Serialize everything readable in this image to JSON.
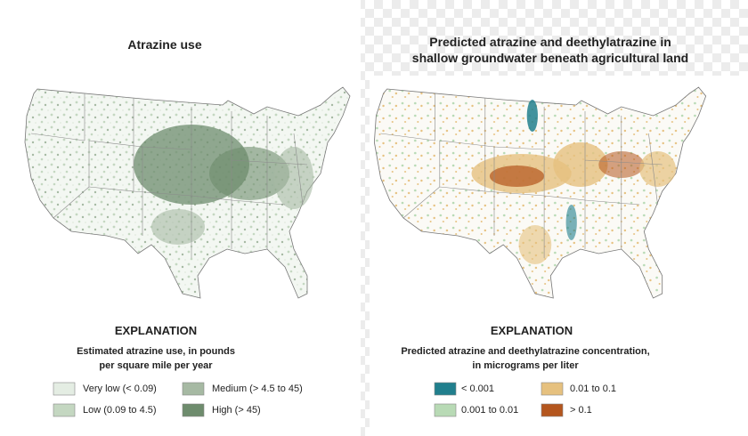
{
  "left": {
    "title": "Atrazine use",
    "explanation": "EXPLANATION",
    "subtitle": [
      "Estimated atrazine use, in pounds",
      "per square mile per year"
    ],
    "legend": [
      {
        "label": "Very low (< 0.09)",
        "color": "#e4ede3"
      },
      {
        "label": "Low (0.09 to 4.5)",
        "color": "#c4d7c1"
      },
      {
        "label": "Medium (> 4.5 to 45)",
        "color": "#a6b9a3"
      },
      {
        "label": "High (> 45)",
        "color": "#6e8c6d"
      }
    ]
  },
  "right": {
    "title": [
      "Predicted atrazine and deethylatrazine in",
      "shallow groundwater beneath agricultural land"
    ],
    "explanation": "EXPLANATION",
    "subtitle": [
      "Predicted atrazine and deethylatrazine concentration,",
      "in micrograms per liter"
    ],
    "legend": [
      {
        "label": "< 0.001",
        "color": "#217f8d"
      },
      {
        "label": "0.001 to 0.01",
        "color": "#b8dab5"
      },
      {
        "label": "0.01 to 0.1",
        "color": "#e6c17f"
      },
      {
        "label": "> 0.1",
        "color": "#b4561e"
      }
    ]
  }
}
